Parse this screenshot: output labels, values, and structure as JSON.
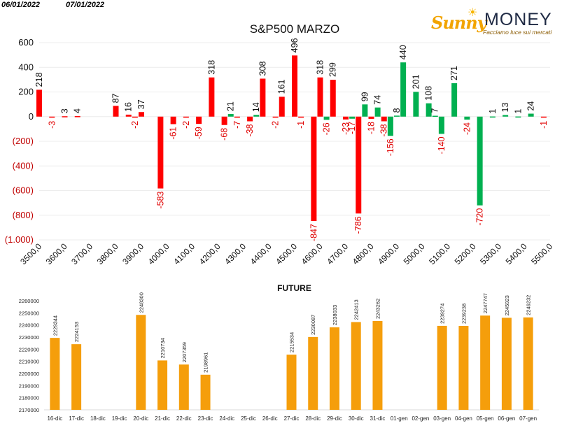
{
  "header": {
    "date_left": "06/01/2022",
    "date_right": "07/01/2022"
  },
  "logo": {
    "brand_left": "Sunny",
    "brand_right": "MONEY",
    "tagline": "Facciamo luce sui mercati"
  },
  "colors": {
    "up": "#00b050",
    "down": "#ff0000",
    "future": "#f59e0b",
    "negative_label": "#e00000"
  },
  "chart_data": [
    {
      "type": "bar",
      "title": "S&P500 MARZO",
      "ylim": [
        -1000,
        600
      ],
      "y_ticks": [
        {
          "value": 600,
          "label": "600"
        },
        {
          "value": 400,
          "label": "400"
        },
        {
          "value": 200,
          "label": "200"
        },
        {
          "value": 0,
          "label": "0"
        },
        {
          "value": -200,
          "label": "(200)"
        },
        {
          "value": -400,
          "label": "(400)"
        },
        {
          "value": -600,
          "label": "(600)"
        },
        {
          "value": -800,
          "label": "(800)"
        },
        {
          "value": -1000,
          "label": "(1.000)"
        }
      ],
      "x_ticks": [
        "3500,0",
        "3600,0",
        "3700,0",
        "3800,0",
        "3900,0",
        "4000,0",
        "4100,0",
        "4200,0",
        "4300,0",
        "4400,0",
        "4500,0",
        "4600,0",
        "4700,0",
        "4800,0",
        "4900,0",
        "5000,0",
        "5100,0",
        "5200,0",
        "5300,0",
        "5400,0",
        "5500,0"
      ],
      "xlim": [
        3500,
        5500
      ],
      "series": [
        {
          "color": "red",
          "points": [
            {
              "x": 3500,
              "y": 218
            },
            {
              "x": 3550,
              "y": -3
            },
            {
              "x": 3600,
              "y": 3
            },
            {
              "x": 3650,
              "y": 4
            },
            {
              "x": 3800,
              "y": 87
            },
            {
              "x": 3850,
              "y": 16
            },
            {
              "x": 3875,
              "y": -2
            },
            {
              "x": 3900,
              "y": 37
            },
            {
              "x": 3975,
              "y": -583
            },
            {
              "x": 4025,
              "y": -61
            },
            {
              "x": 4075,
              "y": -2
            },
            {
              "x": 4125,
              "y": -59
            },
            {
              "x": 4175,
              "y": 318
            },
            {
              "x": 4225,
              "y": -68
            },
            {
              "x": 4275,
              "y": -7
            },
            {
              "x": 4325,
              "y": -38
            },
            {
              "x": 4375,
              "y": 308
            },
            {
              "x": 4425,
              "y": -2
            },
            {
              "x": 4450,
              "y": 161
            },
            {
              "x": 4500,
              "y": 496
            },
            {
              "x": 4525,
              "y": -1
            },
            {
              "x": 4575,
              "y": -847
            },
            {
              "x": 4600,
              "y": 318
            },
            {
              "x": 4650,
              "y": 299
            },
            {
              "x": 4700,
              "y": -23
            },
            {
              "x": 4750,
              "y": -786
            },
            {
              "x": 4800,
              "y": -18
            },
            {
              "x": 4850,
              "y": -38
            },
            {
              "x": 5475,
              "y": -1
            }
          ]
        },
        {
          "color": "green",
          "points": [
            {
              "x": 4625,
              "y": -26
            },
            {
              "x": 4250,
              "y": 21
            },
            {
              "x": 4350,
              "y": 14
            },
            {
              "x": 4725,
              "y": -17
            },
            {
              "x": 4775,
              "y": 99
            },
            {
              "x": 4825,
              "y": 74
            },
            {
              "x": 4875,
              "y": -156
            },
            {
              "x": 4900,
              "y": 8
            },
            {
              "x": 4925,
              "y": 440
            },
            {
              "x": 4975,
              "y": 201
            },
            {
              "x": 5025,
              "y": 108
            },
            {
              "x": 5050,
              "y": 7
            },
            {
              "x": 5075,
              "y": -140
            },
            {
              "x": 5125,
              "y": 271
            },
            {
              "x": 5175,
              "y": -24
            },
            {
              "x": 5225,
              "y": -720
            },
            {
              "x": 5275,
              "y": 1
            },
            {
              "x": 5325,
              "y": 13
            },
            {
              "x": 5375,
              "y": 1
            },
            {
              "x": 5425,
              "y": 24
            }
          ]
        }
      ]
    },
    {
      "type": "bar",
      "title": "FUTURE",
      "ylim": [
        2170000,
        2260000
      ],
      "y_ticks": [
        "2260000",
        "2250000",
        "2240000",
        "2230000",
        "2220000",
        "2210000",
        "2200000",
        "2190000",
        "2180000",
        "2170000"
      ],
      "categories": [
        "16-dic",
        "17-dic",
        "18-dic",
        "19-dic",
        "20-dic",
        "21-dic",
        "22-dic",
        "23-dic",
        "24-dic",
        "25-dic",
        "26-dic",
        "27-dic",
        "28-dic",
        "29-dic",
        "30-dic",
        "31-dic",
        "01-gen",
        "02-gen",
        "03-gen",
        "04-gen",
        "05-gen",
        "06-gen",
        "07-gen"
      ],
      "values": [
        2229344,
        2224153,
        null,
        null,
        2248300,
        2210734,
        2207359,
        2198961,
        null,
        null,
        null,
        2215534,
        2230087,
        2238033,
        2242413,
        2243262,
        null,
        null,
        2239274,
        2239238,
        2247747,
        2245923,
        2246232
      ]
    }
  ]
}
